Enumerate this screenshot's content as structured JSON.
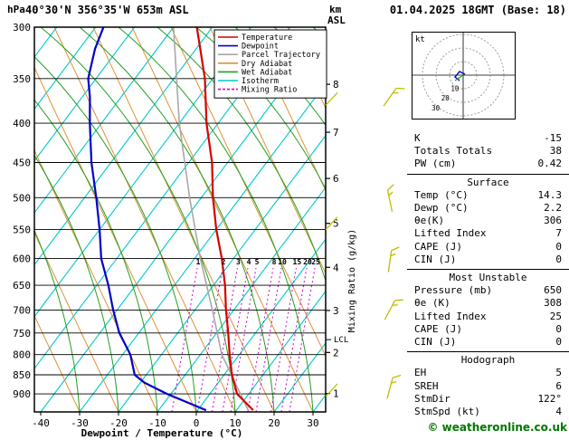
{
  "header": {
    "station": "40°30'N 356°35'W 653m ASL",
    "datetime": "01.04.2025 18GMT (Base: 18)"
  },
  "axes": {
    "pressure_unit": "hPa",
    "pressure_ticks": [
      300,
      350,
      400,
      450,
      500,
      550,
      600,
      650,
      700,
      750,
      800,
      850,
      900
    ],
    "temp_ticks": [
      -40,
      -30,
      -20,
      -10,
      0,
      10,
      20,
      30
    ],
    "xlabel": "Dewpoint / Temperature (°C)",
    "km_label_lines": [
      "km",
      "ASL"
    ],
    "km_ticks": [
      1,
      2,
      3,
      4,
      5,
      6,
      7,
      8
    ],
    "mixing_label": "Mixing Ratio (g/kg)",
    "lcl_label": "LCL",
    "lcl_pressure": 765
  },
  "legend": [
    {
      "label": "Temperature",
      "color": "#d40000",
      "style": "solid"
    },
    {
      "label": "Dewpoint",
      "color": "#0000c8",
      "style": "solid"
    },
    {
      "label": "Parcel Trajectory",
      "color": "#a8a8a8",
      "style": "solid"
    },
    {
      "label": "Dry Adiabat",
      "color": "#de9135",
      "style": "solid"
    },
    {
      "label": "Wet Adiabat",
      "color": "#22a022",
      "style": "solid"
    },
    {
      "label": "Isotherm",
      "color": "#00c8c8",
      "style": "solid"
    },
    {
      "label": "Mixing Ratio",
      "color": "#cc00cc",
      "style": "dashed"
    }
  ],
  "colors": {
    "temperature": "#d40000",
    "dewpoint": "#0000c8",
    "parcel": "#a8a8a8",
    "dry_adiabat": "#de9135",
    "wet_adiabat": "#22a022",
    "isotherm": "#00c8c8",
    "mixing": "#cc00cc",
    "wind_barb": "#bdbd00",
    "grid": "#000000"
  },
  "chart_data": {
    "type": "skew-t-log-p sounding",
    "pressure_range_hpa": [
      300,
      950
    ],
    "temp_axis_c": [
      -40,
      30
    ],
    "temperature_profile": [
      {
        "p": 945,
        "t": 14.3
      },
      {
        "p": 900,
        "t": 7
      },
      {
        "p": 850,
        "t": 2
      },
      {
        "p": 800,
        "t": -2.5
      },
      {
        "p": 750,
        "t": -7
      },
      {
        "p": 700,
        "t": -12
      },
      {
        "p": 650,
        "t": -17
      },
      {
        "p": 600,
        "t": -23
      },
      {
        "p": 550,
        "t": -30
      },
      {
        "p": 500,
        "t": -37
      },
      {
        "p": 450,
        "t": -44
      },
      {
        "p": 400,
        "t": -53
      },
      {
        "p": 350,
        "t": -62
      },
      {
        "p": 300,
        "t": -74
      }
    ],
    "dewpoint_profile": [
      {
        "p": 945,
        "t": 2.2
      },
      {
        "p": 900,
        "t": -11
      },
      {
        "p": 870,
        "t": -19
      },
      {
        "p": 850,
        "t": -23
      },
      {
        "p": 800,
        "t": -28
      },
      {
        "p": 750,
        "t": -35
      },
      {
        "p": 700,
        "t": -41
      },
      {
        "p": 650,
        "t": -47
      },
      {
        "p": 600,
        "t": -54
      },
      {
        "p": 550,
        "t": -60
      },
      {
        "p": 500,
        "t": -67
      },
      {
        "p": 450,
        "t": -75
      },
      {
        "p": 400,
        "t": -83
      },
      {
        "p": 370,
        "t": -88
      },
      {
        "p": 350,
        "t": -92
      },
      {
        "p": 320,
        "t": -96
      },
      {
        "p": 300,
        "t": -98
      }
    ],
    "parcel_profile": [
      {
        "p": 945,
        "t": 13
      },
      {
        "p": 800,
        "t": -4.5
      },
      {
        "p": 700,
        "t": -15.5
      },
      {
        "p": 600,
        "t": -28.5
      },
      {
        "p": 500,
        "t": -43
      },
      {
        "p": 400,
        "t": -60
      },
      {
        "p": 300,
        "t": -80
      }
    ],
    "mixing_ratio_lines": [
      1,
      2,
      3,
      4,
      5,
      8,
      10,
      15,
      20,
      25
    ],
    "wind_barbs": [
      {
        "p": 370,
        "dir": 35
      },
      {
        "p": 505,
        "dir": -12
      },
      {
        "p": 605,
        "dir": 8
      },
      {
        "p": 700,
        "dir": 28
      },
      {
        "p": 885,
        "dir": 15
      }
    ],
    "edge_barbs": [
      {
        "p": 372
      },
      {
        "p": 540
      },
      {
        "p": 890
      }
    ]
  },
  "hodograph": {
    "unit": "kt",
    "rings": [
      10,
      20,
      30
    ]
  },
  "panel": {
    "top_rows": [
      {
        "label": "K",
        "value": "-15"
      },
      {
        "label": "Totals Totals",
        "value": "38"
      },
      {
        "label": "PW (cm)",
        "value": "0.42"
      }
    ],
    "sections": [
      {
        "title": "Surface",
        "rows": [
          {
            "label": "Temp (°C)",
            "value": "14.3"
          },
          {
            "label": "Dewp (°C)",
            "value": "2.2"
          },
          {
            "label": "θe(K)",
            "value": "306"
          },
          {
            "label": "Lifted Index",
            "value": "7"
          },
          {
            "label": "CAPE (J)",
            "value": "0"
          },
          {
            "label": "CIN (J)",
            "value": "0"
          }
        ]
      },
      {
        "title": "Most Unstable",
        "rows": [
          {
            "label": "Pressure (mb)",
            "value": "650"
          },
          {
            "label": "θe (K)",
            "value": "308"
          },
          {
            "label": "Lifted Index",
            "value": "25"
          },
          {
            "label": "CAPE (J)",
            "value": "0"
          },
          {
            "label": "CIN (J)",
            "value": "0"
          }
        ]
      },
      {
        "title": "Hodograph",
        "rows": [
          {
            "label": "EH",
            "value": "5"
          },
          {
            "label": "SREH",
            "value": "6"
          },
          {
            "label": "StmDir",
            "value": "122°"
          },
          {
            "label": "StmSpd (kt)",
            "value": "4"
          }
        ]
      }
    ]
  },
  "copyright": "© weatheronline.co.uk"
}
